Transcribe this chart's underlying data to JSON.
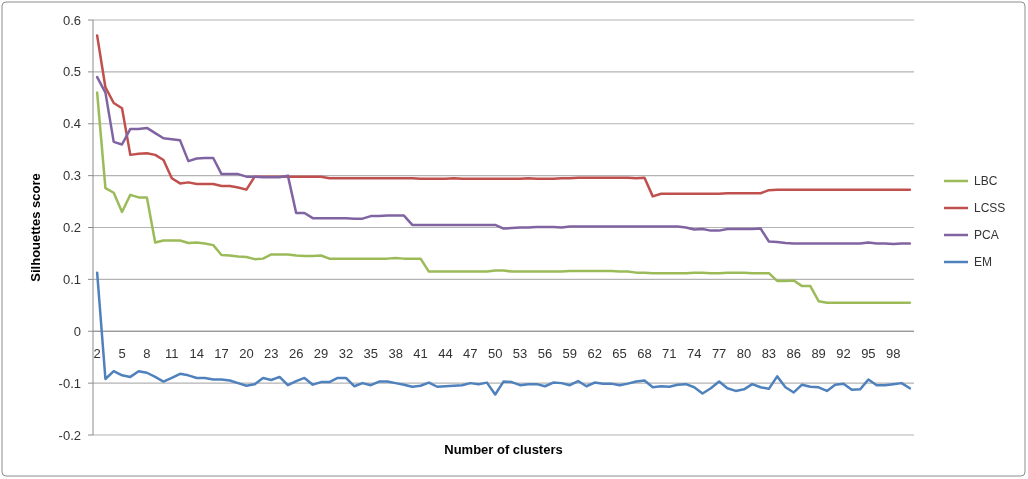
{
  "chart_data": {
    "type": "line",
    "xlabel": "Number of clusters",
    "ylabel": "Silhouettes score",
    "categories": [
      "2",
      null,
      null,
      "5",
      null,
      null,
      "8",
      null,
      null,
      "11",
      null,
      null,
      "14",
      null,
      null,
      "17",
      null,
      null,
      "20",
      null,
      null,
      "23",
      null,
      null,
      "26",
      null,
      null,
      "29",
      null,
      null,
      "32",
      null,
      null,
      "35",
      null,
      null,
      "38",
      null,
      null,
      "41",
      null,
      null,
      "44",
      null,
      null,
      "47",
      null,
      null,
      "50",
      null,
      null,
      "53",
      null,
      null,
      "56",
      null,
      null,
      "59",
      null,
      null,
      "62",
      null,
      null,
      "65",
      null,
      null,
      "68",
      null,
      null,
      "71",
      null,
      null,
      "74",
      null,
      null,
      "77",
      null,
      null,
      "80",
      null,
      null,
      "83",
      null,
      null,
      "86",
      null,
      null,
      "89",
      null,
      null,
      "92",
      null,
      null,
      "95",
      null,
      null,
      "98",
      null,
      null
    ],
    "ylim": [
      -0.2,
      0.6
    ],
    "yticks": [
      -0.2,
      -0.1,
      0,
      0.1,
      0.2,
      0.3,
      0.4,
      0.5,
      0.6
    ],
    "grid": "y",
    "legend": "right",
    "marker": "none",
    "line_style": "solid",
    "series": [
      {
        "name": "LBC",
        "color": "#9bbb59",
        "values": [
          0.46,
          0.276,
          0.267,
          0.23,
          0.263,
          0.258,
          0.258,
          0.171,
          0.175,
          0.175,
          0.175,
          0.17,
          0.171,
          0.169,
          0.166,
          0.147,
          0.146,
          0.144,
          0.143,
          0.139,
          0.14,
          0.148,
          0.148,
          0.148,
          0.146,
          0.145,
          0.145,
          0.146,
          0.14,
          0.14,
          0.14,
          0.14,
          0.14,
          0.14,
          0.14,
          0.14,
          0.141,
          0.14,
          0.14,
          0.14,
          0.115,
          0.115,
          0.115,
          0.115,
          0.115,
          0.115,
          0.115,
          0.115,
          0.117,
          0.117,
          0.115,
          0.115,
          0.115,
          0.115,
          0.115,
          0.115,
          0.115,
          0.116,
          0.116,
          0.116,
          0.116,
          0.116,
          0.116,
          0.115,
          0.115,
          0.113,
          0.113,
          0.112,
          0.112,
          0.112,
          0.112,
          0.112,
          0.113,
          0.113,
          0.112,
          0.112,
          0.113,
          0.113,
          0.113,
          0.112,
          0.112,
          0.112,
          0.097,
          0.097,
          0.098,
          0.087,
          0.087,
          0.058,
          0.055,
          0.055,
          0.055,
          0.055,
          0.055,
          0.055,
          0.055,
          0.055,
          0.055,
          0.055,
          0.055
        ]
      },
      {
        "name": "LCSS",
        "color": "#c0504d",
        "values": [
          0.57,
          0.47,
          0.44,
          0.43,
          0.34,
          0.342,
          0.343,
          0.34,
          0.33,
          0.295,
          0.285,
          0.287,
          0.284,
          0.284,
          0.284,
          0.28,
          0.28,
          0.277,
          0.273,
          0.298,
          0.298,
          0.298,
          0.298,
          0.298,
          0.298,
          0.298,
          0.298,
          0.298,
          0.295,
          0.295,
          0.295,
          0.295,
          0.295,
          0.295,
          0.295,
          0.295,
          0.295,
          0.295,
          0.295,
          0.294,
          0.294,
          0.294,
          0.294,
          0.295,
          0.294,
          0.294,
          0.294,
          0.294,
          0.294,
          0.294,
          0.294,
          0.294,
          0.295,
          0.294,
          0.294,
          0.294,
          0.295,
          0.295,
          0.296,
          0.296,
          0.296,
          0.296,
          0.296,
          0.296,
          0.296,
          0.295,
          0.296,
          0.26,
          0.265,
          0.265,
          0.265,
          0.265,
          0.265,
          0.265,
          0.265,
          0.265,
          0.266,
          0.266,
          0.266,
          0.266,
          0.266,
          0.272,
          0.273,
          0.273,
          0.273,
          0.273,
          0.273,
          0.273,
          0.273,
          0.273,
          0.273,
          0.273,
          0.273,
          0.273,
          0.273,
          0.273,
          0.273,
          0.273,
          0.273
        ]
      },
      {
        "name": "PCA",
        "color": "#8064a2",
        "values": [
          0.49,
          0.46,
          0.365,
          0.36,
          0.39,
          0.39,
          0.392,
          0.382,
          0.372,
          0.37,
          0.368,
          0.328,
          0.333,
          0.334,
          0.334,
          0.303,
          0.303,
          0.303,
          0.298,
          0.298,
          0.297,
          0.297,
          0.297,
          0.3,
          0.228,
          0.228,
          0.218,
          0.218,
          0.218,
          0.218,
          0.218,
          0.217,
          0.217,
          0.222,
          0.222,
          0.223,
          0.223,
          0.223,
          0.205,
          0.205,
          0.205,
          0.205,
          0.205,
          0.205,
          0.205,
          0.205,
          0.205,
          0.205,
          0.205,
          0.198,
          0.199,
          0.2,
          0.2,
          0.201,
          0.201,
          0.201,
          0.2,
          0.202,
          0.202,
          0.202,
          0.202,
          0.202,
          0.202,
          0.202,
          0.202,
          0.202,
          0.202,
          0.202,
          0.202,
          0.202,
          0.202,
          0.2,
          0.196,
          0.197,
          0.194,
          0.194,
          0.197,
          0.197,
          0.197,
          0.197,
          0.198,
          0.173,
          0.172,
          0.17,
          0.169,
          0.169,
          0.169,
          0.169,
          0.169,
          0.169,
          0.169,
          0.169,
          0.169,
          0.171,
          0.169,
          0.169,
          0.168,
          0.169,
          0.169
        ]
      },
      {
        "name": "EM",
        "color": "#4f81bd",
        "values": [
          0.113,
          -0.092,
          -0.077,
          -0.085,
          -0.088,
          -0.077,
          -0.08,
          -0.088,
          -0.097,
          -0.09,
          -0.082,
          -0.085,
          -0.09,
          -0.09,
          -0.093,
          -0.093,
          -0.095,
          -0.1,
          -0.105,
          -0.102,
          -0.09,
          -0.094,
          -0.088,
          -0.104,
          -0.096,
          -0.09,
          -0.103,
          -0.098,
          -0.098,
          -0.09,
          -0.09,
          -0.106,
          -0.1,
          -0.104,
          -0.097,
          -0.097,
          -0.1,
          -0.103,
          -0.107,
          -0.105,
          -0.099,
          -0.107,
          -0.106,
          -0.105,
          -0.104,
          -0.1,
          -0.102,
          -0.099,
          -0.122,
          -0.097,
          -0.098,
          -0.104,
          -0.102,
          -0.102,
          -0.106,
          -0.099,
          -0.1,
          -0.104,
          -0.096,
          -0.106,
          -0.099,
          -0.101,
          -0.101,
          -0.104,
          -0.101,
          -0.097,
          -0.095,
          -0.108,
          -0.106,
          -0.107,
          -0.103,
          -0.102,
          -0.108,
          -0.12,
          -0.11,
          -0.097,
          -0.11,
          -0.115,
          -0.112,
          -0.102,
          -0.108,
          -0.111,
          -0.087,
          -0.108,
          -0.118,
          -0.103,
          -0.107,
          -0.108,
          -0.115,
          -0.103,
          -0.101,
          -0.113,
          -0.112,
          -0.093,
          -0.104,
          -0.104,
          -0.102,
          -0.1,
          -0.11
        ]
      }
    ]
  }
}
